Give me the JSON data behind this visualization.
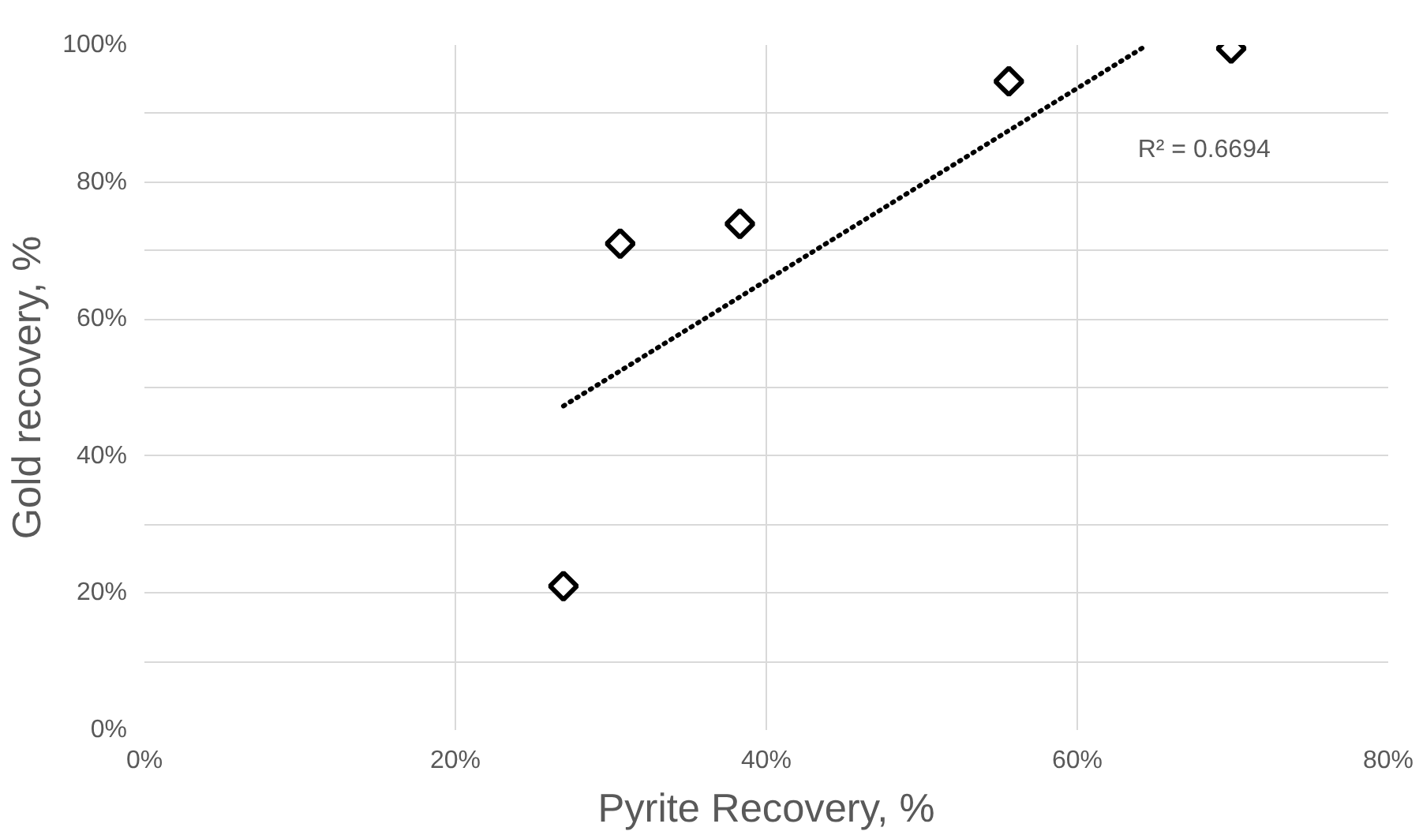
{
  "chart_data": {
    "type": "scatter",
    "xlabel": "Pyrite Recovery, %",
    "ylabel": "Gold recovery, %",
    "x": [
      26.95,
      30.6,
      38.3,
      55.6,
      69.9
    ],
    "series": [
      {
        "color": "#000000",
        "marker": "diamond",
        "values": [
          21.0,
          71.0,
          73.9,
          94.7,
          99.5
        ]
      },
      {
        "type": "line",
        "color": "#000000",
        "line_style": "dotted",
        "marker": "none",
        "x": [
          26.95,
          64.5
        ],
        "values": [
          47.3,
          100
        ]
      }
    ],
    "annotations": [
      "R² = 0.6694"
    ],
    "xlim": [
      0,
      80
    ],
    "xticks": [
      {
        "value": 0,
        "label": "0%"
      },
      {
        "value": 20,
        "label": "20%"
      },
      {
        "value": 40,
        "label": "40%"
      },
      {
        "value": 60,
        "label": "60%"
      },
      {
        "value": 80,
        "label": "80%"
      }
    ],
    "ylim": [
      0,
      100
    ],
    "yticks": [
      {
        "value": 0,
        "label": "0%"
      },
      {
        "value": 10,
        "label": null
      },
      {
        "value": 20,
        "label": "20%"
      },
      {
        "value": 30,
        "label": null
      },
      {
        "value": 40,
        "label": "40%"
      },
      {
        "value": 50,
        "label": null
      },
      {
        "value": 60,
        "label": "60%"
      },
      {
        "value": 70,
        "label": null
      },
      {
        "value": 80,
        "label": "80%"
      },
      {
        "value": 90,
        "label": null
      },
      {
        "value": 100,
        "label": "100%"
      }
    ],
    "grid": true
  }
}
